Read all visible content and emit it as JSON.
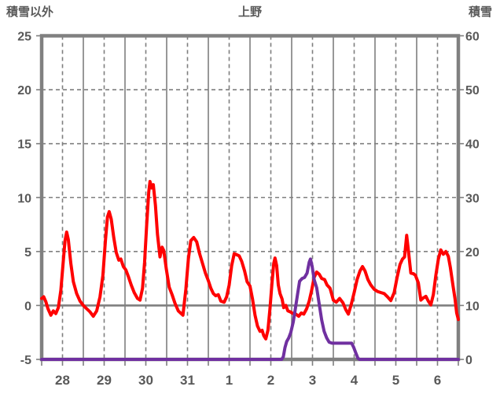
{
  "colors": {
    "temperature_line": "#ff0000",
    "snow_line": "#7030a0",
    "grid": "#7f7f7f",
    "border": "#808080",
    "text": "#595959",
    "background": "#ffffff"
  },
  "chart_data": {
    "type": "line",
    "title": "上野",
    "left_axis_title": "積雪以外",
    "right_axis_title": "積雪",
    "x_axis": {
      "labels": [
        "28",
        "29",
        "30",
        "31",
        "1",
        "2",
        "3",
        "4",
        "5",
        "6"
      ],
      "range_days": [
        0,
        10
      ],
      "solid_gridlines_at_day_boundaries": true,
      "dashed_gridlines_at_half_days": true,
      "ticks_every_half_day": true
    },
    "y_left": {
      "title": "積雪以外",
      "range": [
        -5,
        25
      ],
      "tick_values": [
        25,
        20,
        15,
        10,
        5,
        0,
        -5
      ],
      "dashed_gridlines": [
        20,
        15,
        10,
        5
      ],
      "solid_gridlines": [
        0
      ]
    },
    "y_right": {
      "title": "積雪",
      "range": [
        0,
        60
      ],
      "tick_values": [
        60,
        50,
        40,
        30,
        20,
        10,
        0
      ]
    },
    "legend": "none",
    "series": [
      {
        "name": "積雪以外",
        "axis": "left",
        "color": "#ff0000",
        "points": [
          [
            0.0,
            0.65
          ],
          [
            0.05,
            0.8
          ],
          [
            0.1,
            0.35
          ],
          [
            0.15,
            -0.3
          ],
          [
            0.22,
            -0.9
          ],
          [
            0.28,
            -0.5
          ],
          [
            0.34,
            -0.75
          ],
          [
            0.4,
            -0.2
          ],
          [
            0.46,
            1.4
          ],
          [
            0.52,
            4.2
          ],
          [
            0.56,
            6.0
          ],
          [
            0.6,
            6.8
          ],
          [
            0.64,
            6.1
          ],
          [
            0.7,
            3.9
          ],
          [
            0.76,
            2.2
          ],
          [
            0.84,
            1.1
          ],
          [
            0.92,
            0.4
          ],
          [
            1.0,
            0.0
          ],
          [
            1.08,
            -0.3
          ],
          [
            1.16,
            -0.6
          ],
          [
            1.24,
            -1.0
          ],
          [
            1.32,
            -0.5
          ],
          [
            1.4,
            0.8
          ],
          [
            1.47,
            2.8
          ],
          [
            1.53,
            6.0
          ],
          [
            1.58,
            8.2
          ],
          [
            1.62,
            8.7
          ],
          [
            1.67,
            8.0
          ],
          [
            1.73,
            6.3
          ],
          [
            1.79,
            4.9
          ],
          [
            1.85,
            4.2
          ],
          [
            1.9,
            4.3
          ],
          [
            1.96,
            3.6
          ],
          [
            2.02,
            3.3
          ],
          [
            2.08,
            2.7
          ],
          [
            2.15,
            1.9
          ],
          [
            2.22,
            1.2
          ],
          [
            2.3,
            0.65
          ],
          [
            2.36,
            0.5
          ],
          [
            2.42,
            1.6
          ],
          [
            2.47,
            4.0
          ],
          [
            2.52,
            7.5
          ],
          [
            2.57,
            10.5
          ],
          [
            2.6,
            11.5
          ],
          [
            2.64,
            10.9
          ],
          [
            2.68,
            11.2
          ],
          [
            2.73,
            9.3
          ],
          [
            2.78,
            6.6
          ],
          [
            2.84,
            4.5
          ],
          [
            2.89,
            5.4
          ],
          [
            2.93,
            5.1
          ],
          [
            2.99,
            3.4
          ],
          [
            3.06,
            1.7
          ],
          [
            3.13,
            1.0
          ],
          [
            3.2,
            0.2
          ],
          [
            3.28,
            -0.5
          ],
          [
            3.39,
            -0.9
          ],
          [
            3.46,
            1.5
          ],
          [
            3.52,
            4.3
          ],
          [
            3.58,
            6.0
          ],
          [
            3.65,
            6.3
          ],
          [
            3.72,
            5.9
          ],
          [
            3.79,
            4.8
          ],
          [
            3.86,
            3.9
          ],
          [
            3.93,
            3.0
          ],
          [
            4.0,
            2.3
          ],
          [
            4.06,
            1.6
          ],
          [
            4.12,
            1.1
          ],
          [
            4.18,
            0.9
          ],
          [
            4.24,
            1.0
          ],
          [
            4.3,
            0.4
          ],
          [
            4.38,
            0.3
          ],
          [
            4.44,
            0.8
          ],
          [
            4.5,
            1.9
          ],
          [
            4.56,
            3.7
          ],
          [
            4.62,
            4.8
          ],
          [
            4.68,
            4.7
          ],
          [
            4.74,
            4.6
          ],
          [
            4.8,
            4.1
          ],
          [
            4.87,
            3.2
          ],
          [
            4.93,
            2.2
          ],
          [
            5.0,
            1.8
          ],
          [
            5.06,
            0.6
          ],
          [
            5.12,
            -0.9
          ],
          [
            5.18,
            -1.9
          ],
          [
            5.24,
            -2.4
          ],
          [
            5.29,
            -2.3
          ],
          [
            5.33,
            -2.8
          ],
          [
            5.38,
            -3.1
          ],
          [
            5.43,
            -2.3
          ],
          [
            5.48,
            -0.3
          ],
          [
            5.53,
            2.2
          ],
          [
            5.57,
            3.9
          ],
          [
            5.6,
            4.4
          ],
          [
            5.64,
            3.7
          ],
          [
            5.68,
            1.9
          ],
          [
            5.72,
            1.1
          ],
          [
            5.77,
            0.6
          ],
          [
            5.81,
            -0.2
          ],
          [
            5.86,
            0.0
          ],
          [
            5.91,
            -0.5
          ],
          [
            5.97,
            -0.6
          ],
          [
            6.03,
            -0.75
          ],
          [
            6.1,
            -0.8
          ],
          [
            6.17,
            -1.0
          ],
          [
            6.23,
            -0.7
          ],
          [
            6.29,
            -0.8
          ],
          [
            6.36,
            -0.3
          ],
          [
            6.42,
            0.4
          ],
          [
            6.48,
            1.4
          ],
          [
            6.54,
            2.6
          ],
          [
            6.6,
            3.1
          ],
          [
            6.66,
            2.9
          ],
          [
            6.72,
            2.5
          ],
          [
            6.79,
            2.4
          ],
          [
            6.85,
            1.9
          ],
          [
            6.92,
            1.6
          ],
          [
            7.0,
            0.5
          ],
          [
            7.07,
            0.3
          ],
          [
            7.15,
            0.65
          ],
          [
            7.23,
            0.25
          ],
          [
            7.3,
            -0.4
          ],
          [
            7.36,
            -0.8
          ],
          [
            7.43,
            0.1
          ],
          [
            7.5,
            1.2
          ],
          [
            7.57,
            2.4
          ],
          [
            7.64,
            3.2
          ],
          [
            7.7,
            3.6
          ],
          [
            7.76,
            3.2
          ],
          [
            7.83,
            2.4
          ],
          [
            7.9,
            1.9
          ],
          [
            7.98,
            1.5
          ],
          [
            8.06,
            1.3
          ],
          [
            8.14,
            1.2
          ],
          [
            8.22,
            1.1
          ],
          [
            8.3,
            0.8
          ],
          [
            8.38,
            0.45
          ],
          [
            8.46,
            1.2
          ],
          [
            8.53,
            2.6
          ],
          [
            8.6,
            3.8
          ],
          [
            8.66,
            4.3
          ],
          [
            8.71,
            4.5
          ],
          [
            8.76,
            6.5
          ],
          [
            8.81,
            4.8
          ],
          [
            8.86,
            3.0
          ],
          [
            8.92,
            2.95
          ],
          [
            8.97,
            2.8
          ],
          [
            9.04,
            2.1
          ],
          [
            9.1,
            0.5
          ],
          [
            9.16,
            0.7
          ],
          [
            9.22,
            0.85
          ],
          [
            9.28,
            0.4
          ],
          [
            9.34,
            0.05
          ],
          [
            9.4,
            1.0
          ],
          [
            9.46,
            2.8
          ],
          [
            9.52,
            4.3
          ],
          [
            9.58,
            5.15
          ],
          [
            9.64,
            4.75
          ],
          [
            9.7,
            5.0
          ],
          [
            9.76,
            4.55
          ],
          [
            9.81,
            3.5
          ],
          [
            9.87,
            1.9
          ],
          [
            9.92,
            0.6
          ],
          [
            9.96,
            -0.7
          ],
          [
            10.0,
            -1.3
          ]
        ]
      },
      {
        "name": "積雪",
        "axis": "right",
        "color": "#7030a0",
        "points": [
          [
            0.0,
            0
          ],
          [
            5.76,
            0
          ],
          [
            5.8,
            0.5
          ],
          [
            5.84,
            2.2
          ],
          [
            5.88,
            3.3
          ],
          [
            5.93,
            4.0
          ],
          [
            5.98,
            5.0
          ],
          [
            6.04,
            7.0
          ],
          [
            6.09,
            9.5
          ],
          [
            6.14,
            12.0
          ],
          [
            6.19,
            14.5
          ],
          [
            6.25,
            15.0
          ],
          [
            6.31,
            15.2
          ],
          [
            6.37,
            16.0
          ],
          [
            6.42,
            18.0
          ],
          [
            6.45,
            18.6
          ],
          [
            6.49,
            17.3
          ],
          [
            6.54,
            14.8
          ],
          [
            6.6,
            13.3
          ],
          [
            6.66,
            10.3
          ],
          [
            6.72,
            7.3
          ],
          [
            6.78,
            5.2
          ],
          [
            6.84,
            4.0
          ],
          [
            6.9,
            3.2
          ],
          [
            6.97,
            3.0
          ],
          [
            7.44,
            3.0
          ],
          [
            7.49,
            2.2
          ],
          [
            7.54,
            1.2
          ],
          [
            7.59,
            0.2
          ],
          [
            7.63,
            0
          ],
          [
            10.0,
            0
          ]
        ]
      }
    ]
  }
}
